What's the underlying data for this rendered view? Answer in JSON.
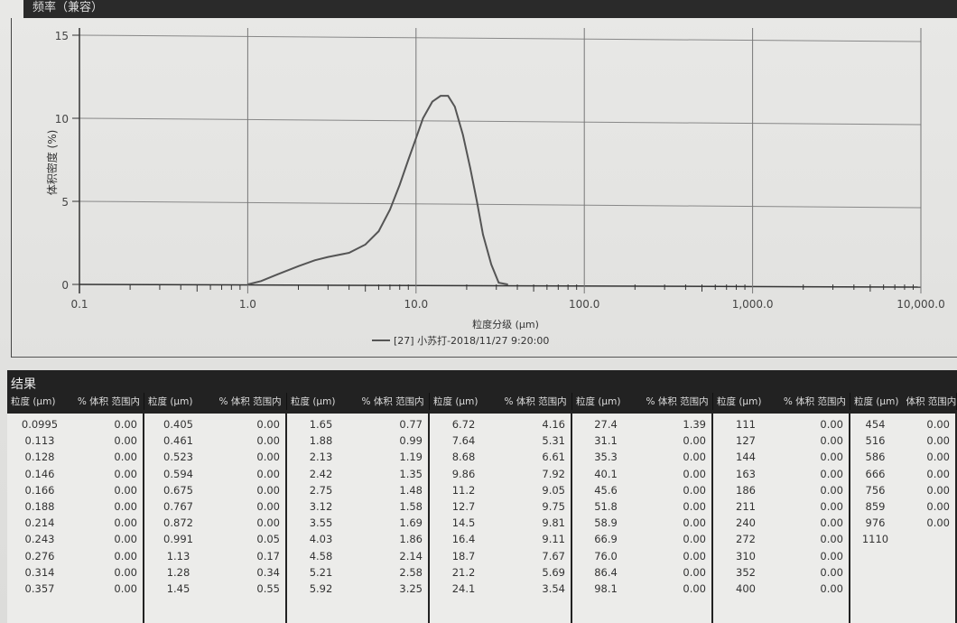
{
  "chart_header": "频率（兼容）",
  "chart_data": {
    "type": "line",
    "ylabel": "体积密度 (%)",
    "xlabel": "粒度分级 (μm)",
    "x_scale": "log",
    "xlim": [
      0.1,
      10000
    ],
    "ylim": [
      0,
      15
    ],
    "x_ticks": [
      "0.1",
      "1.0",
      "10.0",
      "100.0",
      "1,000.0",
      "10,000.0"
    ],
    "y_ticks": [
      "0",
      "5",
      "10",
      "15"
    ],
    "grid": true,
    "legend_position": "bottom-center",
    "series": [
      {
        "name": "[27] 小苏打-2018/11/27 9:20:00",
        "color": "#555555",
        "x": [
          1.0,
          1.2,
          1.5,
          2,
          2.5,
          3,
          4,
          5,
          6,
          7,
          8,
          9,
          10,
          11,
          12.5,
          14,
          15.5,
          17,
          19,
          21,
          23,
          25,
          28,
          31,
          35
        ],
        "y": [
          0,
          0.2,
          0.6,
          1.1,
          1.45,
          1.65,
          1.9,
          2.4,
          3.2,
          4.5,
          6,
          7.5,
          8.8,
          10,
          11,
          11.35,
          11.35,
          10.7,
          9,
          7,
          5,
          3,
          1.2,
          0.1,
          0
        ]
      }
    ]
  },
  "results": {
    "title": "结果",
    "col_size": "粒度 (μm)",
    "col_vol": "% 体积 范围内",
    "col_vol_last": "体积 范围内",
    "groups": [
      {
        "rows": [
          [
            "0.0995",
            "0.00"
          ],
          [
            "0.113",
            "0.00"
          ],
          [
            "0.128",
            "0.00"
          ],
          [
            "0.146",
            "0.00"
          ],
          [
            "0.166",
            "0.00"
          ],
          [
            "0.188",
            "0.00"
          ],
          [
            "0.214",
            "0.00"
          ],
          [
            "0.243",
            "0.00"
          ],
          [
            "0.276",
            "0.00"
          ],
          [
            "0.314",
            "0.00"
          ],
          [
            "0.357",
            "0.00"
          ]
        ]
      },
      {
        "rows": [
          [
            "0.405",
            "0.00"
          ],
          [
            "0.461",
            "0.00"
          ],
          [
            "0.523",
            "0.00"
          ],
          [
            "0.594",
            "0.00"
          ],
          [
            "0.675",
            "0.00"
          ],
          [
            "0.767",
            "0.00"
          ],
          [
            "0.872",
            "0.00"
          ],
          [
            "0.991",
            "0.05"
          ],
          [
            "1.13",
            "0.17"
          ],
          [
            "1.28",
            "0.34"
          ],
          [
            "1.45",
            "0.55"
          ]
        ]
      },
      {
        "rows": [
          [
            "1.65",
            "0.77"
          ],
          [
            "1.88",
            "0.99"
          ],
          [
            "2.13",
            "1.19"
          ],
          [
            "2.42",
            "1.35"
          ],
          [
            "2.75",
            "1.48"
          ],
          [
            "3.12",
            "1.58"
          ],
          [
            "3.55",
            "1.69"
          ],
          [
            "4.03",
            "1.86"
          ],
          [
            "4.58",
            "2.14"
          ],
          [
            "5.21",
            "2.58"
          ],
          [
            "5.92",
            "3.25"
          ]
        ]
      },
      {
        "rows": [
          [
            "6.72",
            "4.16"
          ],
          [
            "7.64",
            "5.31"
          ],
          [
            "8.68",
            "6.61"
          ],
          [
            "9.86",
            "7.92"
          ],
          [
            "11.2",
            "9.05"
          ],
          [
            "12.7",
            "9.75"
          ],
          [
            "14.5",
            "9.81"
          ],
          [
            "16.4",
            "9.11"
          ],
          [
            "18.7",
            "7.67"
          ],
          [
            "21.2",
            "5.69"
          ],
          [
            "24.1",
            "3.54"
          ]
        ]
      },
      {
        "rows": [
          [
            "27.4",
            "1.39"
          ],
          [
            "31.1",
            "0.00"
          ],
          [
            "35.3",
            "0.00"
          ],
          [
            "40.1",
            "0.00"
          ],
          [
            "45.6",
            "0.00"
          ],
          [
            "51.8",
            "0.00"
          ],
          [
            "58.9",
            "0.00"
          ],
          [
            "66.9",
            "0.00"
          ],
          [
            "76.0",
            "0.00"
          ],
          [
            "86.4",
            "0.00"
          ],
          [
            "98.1",
            "0.00"
          ]
        ]
      },
      {
        "rows": [
          [
            "111",
            "0.00"
          ],
          [
            "127",
            "0.00"
          ],
          [
            "144",
            "0.00"
          ],
          [
            "163",
            "0.00"
          ],
          [
            "186",
            "0.00"
          ],
          [
            "211",
            "0.00"
          ],
          [
            "240",
            "0.00"
          ],
          [
            "272",
            "0.00"
          ],
          [
            "310",
            "0.00"
          ],
          [
            "352",
            "0.00"
          ],
          [
            "400",
            "0.00"
          ]
        ]
      },
      {
        "rows": [
          [
            "454",
            "0.00"
          ],
          [
            "516",
            "0.00"
          ],
          [
            "586",
            "0.00"
          ],
          [
            "666",
            "0.00"
          ],
          [
            "756",
            "0.00"
          ],
          [
            "859",
            "0.00"
          ],
          [
            "976",
            "0.00"
          ],
          [
            "1110",
            ""
          ]
        ]
      }
    ]
  }
}
